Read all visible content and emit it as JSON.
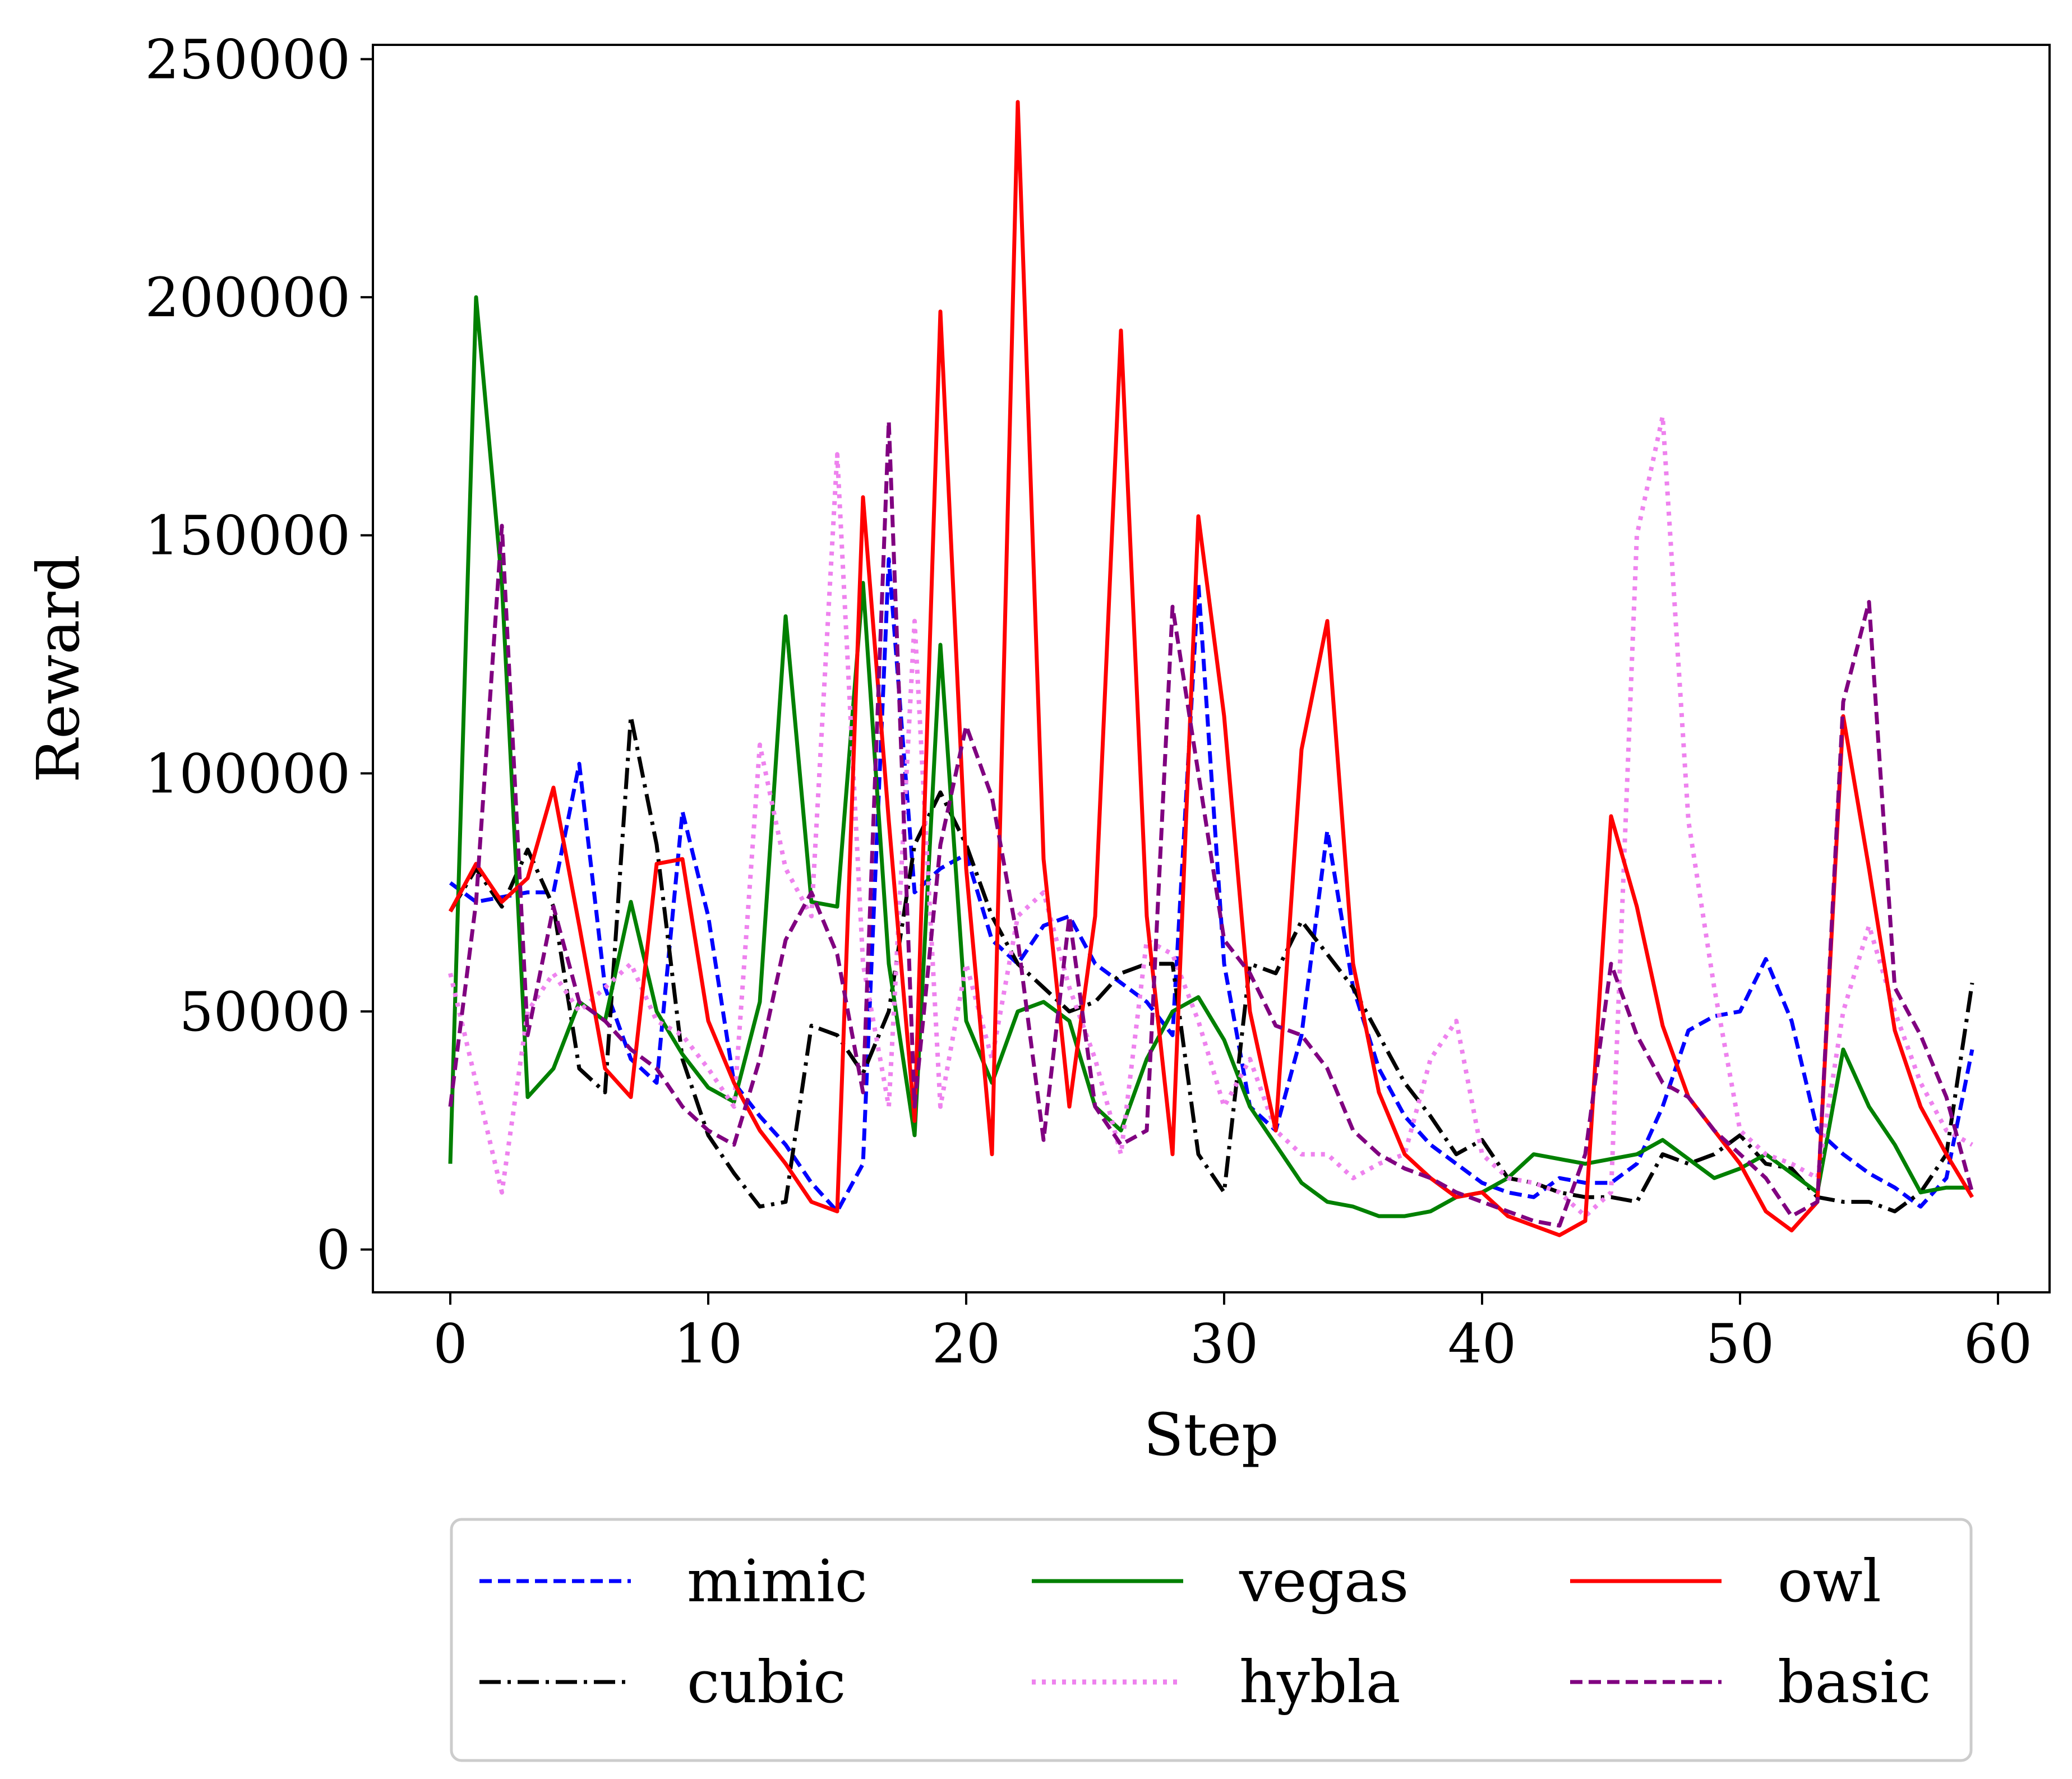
{
  "chart_data": {
    "type": "line",
    "xlabel": "Step",
    "ylabel": "Reward",
    "xlim": [
      -3,
      62
    ],
    "ylim": [
      -9000,
      253000
    ],
    "xticks": [
      0,
      10,
      20,
      30,
      40,
      50,
      60
    ],
    "yticks": [
      0,
      50000,
      100000,
      150000,
      200000,
      250000
    ],
    "grid": false,
    "legend_position": "below",
    "x": [
      0,
      1,
      2,
      3,
      4,
      5,
      6,
      7,
      8,
      9,
      10,
      11,
      12,
      13,
      14,
      15,
      16,
      17,
      18,
      19,
      20,
      21,
      22,
      23,
      24,
      25,
      26,
      27,
      28,
      29,
      30,
      31,
      32,
      33,
      34,
      35,
      36,
      37,
      38,
      39,
      40,
      41,
      42,
      43,
      44,
      45,
      46,
      47,
      48,
      49,
      50,
      51,
      52,
      53,
      54,
      55,
      56,
      57,
      58,
      59
    ],
    "series": [
      {
        "name": "mimic",
        "color": "#0000ff",
        "dash": "dashed",
        "values": [
          77000,
          73000,
          74000,
          75000,
          75000,
          102000,
          55000,
          40000,
          35000,
          92000,
          70000,
          35000,
          28000,
          22000,
          14000,
          8000,
          18000,
          145000,
          75000,
          80000,
          83000,
          65000,
          60000,
          68000,
          70000,
          60000,
          56000,
          52000,
          45000,
          140000,
          60000,
          30000,
          25000,
          45000,
          88000,
          55000,
          38000,
          28000,
          22000,
          18000,
          14000,
          12000,
          11000,
          15000,
          14000,
          14000,
          18000,
          30000,
          46000,
          49000,
          50000,
          61000,
          48000,
          25000,
          20000,
          16000,
          13000,
          9000,
          15000,
          42000
        ]
      },
      {
        "name": "cubic",
        "color": "#000000",
        "dash": "dashdot",
        "values": [
          71000,
          80000,
          72000,
          84000,
          72000,
          38000,
          33000,
          112000,
          85000,
          40000,
          24000,
          16000,
          9000,
          10000,
          47000,
          45000,
          37000,
          50000,
          85000,
          96000,
          85000,
          70000,
          60000,
          55000,
          50000,
          52000,
          58000,
          60000,
          60000,
          20000,
          12000,
          60000,
          58000,
          69000,
          62000,
          55000,
          45000,
          35000,
          28000,
          20000,
          23000,
          15000,
          14000,
          12000,
          11000,
          11000,
          10000,
          20000,
          18000,
          20000,
          24000,
          18000,
          17000,
          11000,
          10000,
          10000,
          8000,
          12000,
          20000,
          56000
        ]
      },
      {
        "name": "vegas",
        "color": "#008000",
        "dash": "solid",
        "values": [
          18000,
          200000,
          140000,
          32000,
          38000,
          52000,
          48000,
          73000,
          50000,
          41000,
          34000,
          31000,
          52000,
          133000,
          73000,
          72000,
          140000,
          60000,
          24000,
          127000,
          48000,
          35000,
          50000,
          52000,
          48000,
          30000,
          25000,
          40000,
          50000,
          53000,
          44000,
          30000,
          22000,
          14000,
          10000,
          9000,
          7000,
          7000,
          8000,
          11000,
          12000,
          15000,
          20000,
          19000,
          18000,
          19000,
          20000,
          23000,
          19000,
          15000,
          17000,
          20000,
          16000,
          12000,
          42000,
          30000,
          22000,
          12000,
          13000,
          13000
        ]
      },
      {
        "name": "hybla",
        "color": "#ee82ee",
        "dash": "dotted",
        "values": [
          58000,
          35000,
          12000,
          50000,
          58000,
          50000,
          55000,
          60000,
          48000,
          45000,
          38000,
          30000,
          106000,
          80000,
          70000,
          167000,
          60000,
          30000,
          132000,
          30000,
          60000,
          40000,
          70000,
          75000,
          55000,
          40000,
          20000,
          65000,
          62000,
          48000,
          30000,
          40000,
          25000,
          20000,
          20000,
          15000,
          18000,
          20000,
          40000,
          48000,
          20000,
          15000,
          14000,
          12000,
          7000,
          12000,
          150000,
          175000,
          90000,
          55000,
          25000,
          20000,
          18000,
          15000,
          50000,
          68000,
          50000,
          35000,
          25000,
          22000
        ]
      },
      {
        "name": "owl",
        "color": "#ff0000",
        "dash": "solid",
        "values": [
          71000,
          81000,
          73000,
          78000,
          97000,
          68000,
          38000,
          32000,
          81000,
          82000,
          48000,
          35000,
          25000,
          18000,
          10000,
          8000,
          158000,
          90000,
          27000,
          197000,
          80000,
          20000,
          241000,
          82000,
          30000,
          70000,
          193000,
          70000,
          20000,
          154000,
          112000,
          50000,
          25000,
          105000,
          132000,
          60000,
          33000,
          20000,
          15000,
          11000,
          12000,
          7000,
          5000,
          3000,
          6000,
          91000,
          72000,
          47000,
          32000,
          25000,
          18000,
          8000,
          4000,
          10000,
          112000,
          80000,
          46000,
          30000,
          20000,
          11000
        ]
      },
      {
        "name": "basic",
        "color": "#800080",
        "dash": "dashed",
        "values": [
          30000,
          73000,
          152000,
          45000,
          72000,
          52000,
          48000,
          42000,
          38000,
          30000,
          25000,
          22000,
          40000,
          65000,
          75000,
          62000,
          33000,
          174000,
          30000,
          85000,
          110000,
          95000,
          65000,
          23000,
          70000,
          30000,
          22000,
          25000,
          135000,
          100000,
          65000,
          58000,
          47000,
          45000,
          38000,
          25000,
          20000,
          17000,
          15000,
          12000,
          10000,
          8000,
          6000,
          5000,
          20000,
          60000,
          45000,
          35000,
          32000,
          25000,
          20000,
          15000,
          7000,
          10000,
          115000,
          136000,
          55000,
          45000,
          32000,
          12000
        ]
      }
    ]
  }
}
